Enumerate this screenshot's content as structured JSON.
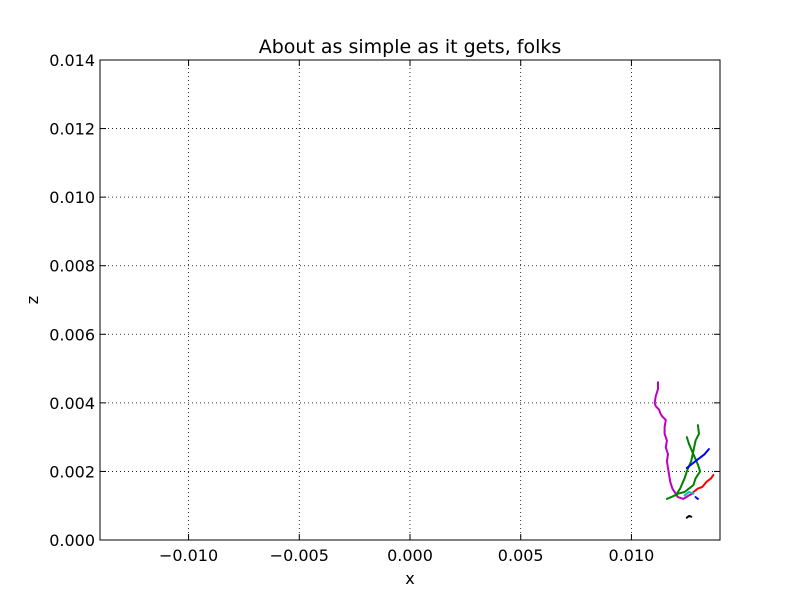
{
  "chart_data": {
    "type": "line",
    "title": "About as simple as it gets, folks",
    "xlabel": "x",
    "ylabel": "z",
    "xlim": [
      -0.014,
      0.014
    ],
    "ylim": [
      0.0,
      0.014
    ],
    "grid": true,
    "xticks": [
      -0.01,
      -0.005,
      0.0,
      0.005,
      0.01
    ],
    "xtick_labels": [
      "−0.010",
      "−0.005",
      "0.000",
      "0.005",
      "0.010"
    ],
    "yticks": [
      0.0,
      0.002,
      0.004,
      0.006,
      0.008,
      0.01,
      0.012,
      0.014
    ],
    "ytick_labels": [
      "0.000",
      "0.002",
      "0.004",
      "0.006",
      "0.008",
      "0.010",
      "0.012",
      "0.014"
    ],
    "series": [
      {
        "color": "#bf00bf",
        "x": [
          0.01275,
          0.0126,
          0.01235,
          0.0121,
          0.01185,
          0.01175,
          0.0117,
          0.01165,
          0.0116,
          0.01165,
          0.01155,
          0.0116,
          0.0115,
          0.0115,
          0.01155,
          0.0114,
          0.0113,
          0.01125,
          0.0111,
          0.01105,
          0.0111,
          0.0112,
          0.0112
        ],
        "y": [
          0.00135,
          0.0013,
          0.0012,
          0.00125,
          0.0015,
          0.0017,
          0.0019,
          0.0021,
          0.0023,
          0.0025,
          0.0027,
          0.0029,
          0.0031,
          0.0033,
          0.0035,
          0.0036,
          0.0037,
          0.0038,
          0.0039,
          0.004,
          0.0042,
          0.0044,
          0.0046
        ]
      },
      {
        "color": "#008000",
        "x": [
          0.0116,
          0.0118,
          0.0121,
          0.0124,
          0.0126,
          0.0128,
          0.0129,
          0.0131,
          0.013,
          0.0128,
          0.0126,
          0.0125
        ],
        "y": [
          0.0012,
          0.00125,
          0.00135,
          0.0014,
          0.0015,
          0.0016,
          0.0018,
          0.002,
          0.0022,
          0.0025,
          0.0028,
          0.003
        ]
      },
      {
        "color": "#008000",
        "x": [
          0.012,
          0.0122,
          0.0124,
          0.0125,
          0.0127,
          0.0128,
          0.0129,
          0.01305,
          0.013
        ],
        "y": [
          0.0013,
          0.0015,
          0.0018,
          0.002,
          0.0023,
          0.0026,
          0.0029,
          0.0031,
          0.00335
        ]
      },
      {
        "color": "#0000ff",
        "x": [
          0.0125,
          0.0127,
          0.0129,
          0.0131,
          0.0133,
          0.0135
        ],
        "y": [
          0.0021,
          0.0022,
          0.0023,
          0.0024,
          0.0025,
          0.00265
        ]
      },
      {
        "color": "#0000ff",
        "x": [
          0.0129,
          0.013
        ],
        "y": [
          0.00125,
          0.0012
        ]
      },
      {
        "color": "#ff0000",
        "x": [
          0.0128,
          0.013,
          0.0132,
          0.0134,
          0.0136,
          0.0137
        ],
        "y": [
          0.0014,
          0.0015,
          0.00155,
          0.0017,
          0.0018,
          0.0019
        ]
      },
      {
        "color": "#00bfbf",
        "x": [
          0.0124,
          0.0126,
          0.0128
        ],
        "y": [
          0.0013,
          0.0014,
          0.00135
        ]
      },
      {
        "color": "#000000",
        "x": [
          0.0125,
          0.0126,
          0.0127
        ],
        "y": [
          0.00065,
          0.0007,
          0.00068
        ]
      }
    ]
  }
}
